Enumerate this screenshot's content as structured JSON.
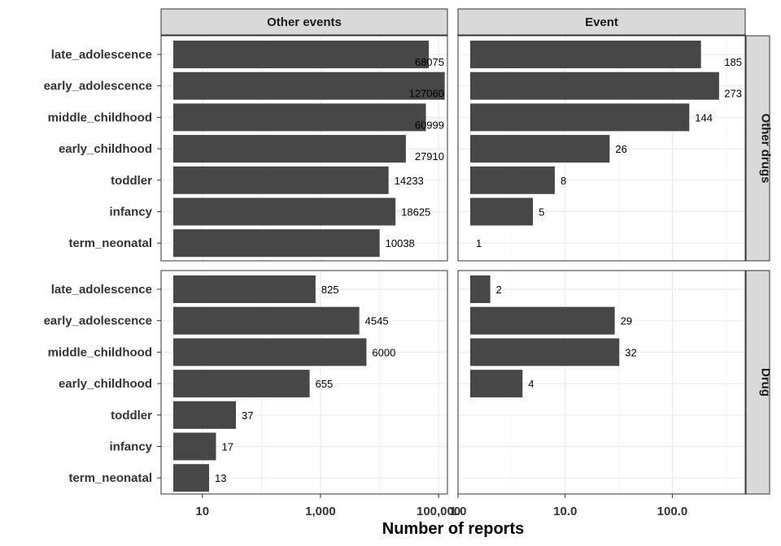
{
  "chart_data": {
    "type": "bar",
    "orientation": "horizontal",
    "facet_columns": [
      "Other events",
      "Event"
    ],
    "facet_rows": [
      "Other drugs",
      "Drug"
    ],
    "categories": [
      "late_adolescence",
      "early_adolescence",
      "middle_childhood",
      "early_childhood",
      "toddler",
      "infancy",
      "term_neonatal"
    ],
    "xlabel": "Number of reports",
    "x_scale": "log10",
    "panels": [
      {
        "column": "Other events",
        "row": "Other drugs",
        "values": [
          68075,
          127060,
          60999,
          27910,
          14233,
          18625,
          10038
        ],
        "labels": [
          "68075",
          "127060",
          "60999",
          "27910",
          "14233",
          "18625",
          "10038"
        ]
      },
      {
        "column": "Event",
        "row": "Other drugs",
        "values": [
          185,
          273,
          144,
          26,
          8,
          5,
          1
        ],
        "labels": [
          "185",
          "273",
          "144",
          "26",
          "8",
          "5",
          "1"
        ]
      },
      {
        "column": "Other events",
        "row": "Drug",
        "values": [
          825,
          4545,
          6000,
          655,
          37,
          17,
          13
        ],
        "labels": [
          "825",
          "4545",
          "6000",
          "655",
          "37",
          "17",
          "13"
        ]
      },
      {
        "column": "Event",
        "row": "Drug",
        "values": [
          2,
          29,
          32,
          4,
          null,
          null,
          null
        ],
        "labels": [
          "2",
          "29",
          "32",
          "4",
          null,
          null,
          null
        ]
      }
    ],
    "x_axes": [
      {
        "column": "Other events",
        "log_min": 0.301,
        "log_max": 5.15,
        "ticks": [
          {
            "value": 10,
            "label": "10"
          },
          {
            "value": 1000,
            "label": "1,000"
          },
          {
            "value": 100000,
            "label": "100,000"
          }
        ]
      },
      {
        "column": "Event",
        "log_min": 0.0,
        "log_max": 2.68,
        "ticks": [
          {
            "value": 1,
            "label": "1.0"
          },
          {
            "value": 10,
            "label": "10.0"
          },
          {
            "value": 100,
            "label": "100.0"
          }
        ]
      }
    ],
    "grid": true,
    "bar_color": "#474747",
    "strip_color": "#d9d9d9",
    "grid_color": "#ebebeb"
  }
}
